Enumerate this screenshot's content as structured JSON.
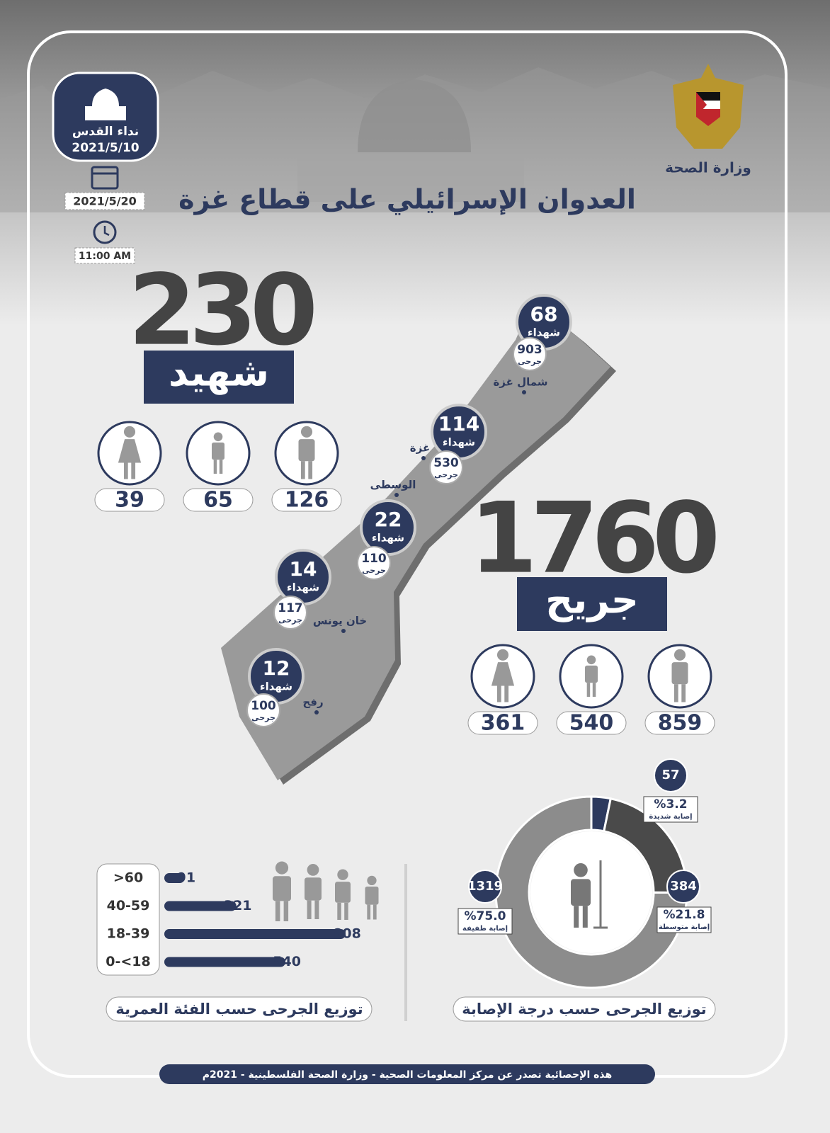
{
  "header": {
    "ministry": "وزارة الصحة",
    "badge_title": "نداء القدس",
    "badge_date": "2021/5/10",
    "date": "2021/5/20",
    "time": "11:00 AM",
    "title": "العدوان الإسرائيلي على قطاع غزة"
  },
  "martyrs": {
    "total": 230,
    "label": "شهيد",
    "men": 126,
    "children": 65,
    "women": 39
  },
  "injured": {
    "total": 1760,
    "label": "جريح",
    "men": 859,
    "children": 540,
    "women": 361
  },
  "regions": [
    {
      "name": "شمال غزة",
      "martyrs": 68,
      "martyrs_label": "شهداء",
      "injured": 903,
      "injured_label": "جرحى"
    },
    {
      "name": "غزة",
      "martyrs": 114,
      "martyrs_label": "شهداء",
      "injured": 530,
      "injured_label": "جرحى"
    },
    {
      "name": "الوسطى",
      "martyrs": 22,
      "martyrs_label": "شهداء",
      "injured": 110,
      "injured_label": "جرحى"
    },
    {
      "name": "خان يونس",
      "martyrs": 14,
      "martyrs_label": "شهداء",
      "injured": 117,
      "injured_label": "جرحى"
    },
    {
      "name": "رفح",
      "martyrs": 12,
      "martyrs_label": "شهداء",
      "injured": 100,
      "injured_label": "جرحى"
    }
  ],
  "age_chart": {
    "title": "توزيع الجرحى حسب الفئة العمرية",
    "categories": [
      ">60",
      "40-59",
      "18-39",
      "0-<18"
    ],
    "values": [
      91,
      321,
      808,
      540
    ],
    "color": "#2d3a5e"
  },
  "severity_chart": {
    "title": "توزيع الجرحى حسب درجة الإصابة",
    "segments": [
      {
        "count": 57,
        "percent_label": "%3.2",
        "label": "إصابة شديدة",
        "color": "#2d3a5e"
      },
      {
        "count": 384,
        "percent_label": "%21.8",
        "label": "إصابة متوسطة",
        "color": "#4a4a4a"
      },
      {
        "count": 1319,
        "percent_label": "%75.0",
        "label": "إصابة طفيفة",
        "color": "#8c8c8c"
      }
    ]
  },
  "footer": "هذه الإحصائية تصدر عن مركز المعلومات الصحية - وزارة الصحة الفلسطينية - 2021م"
}
